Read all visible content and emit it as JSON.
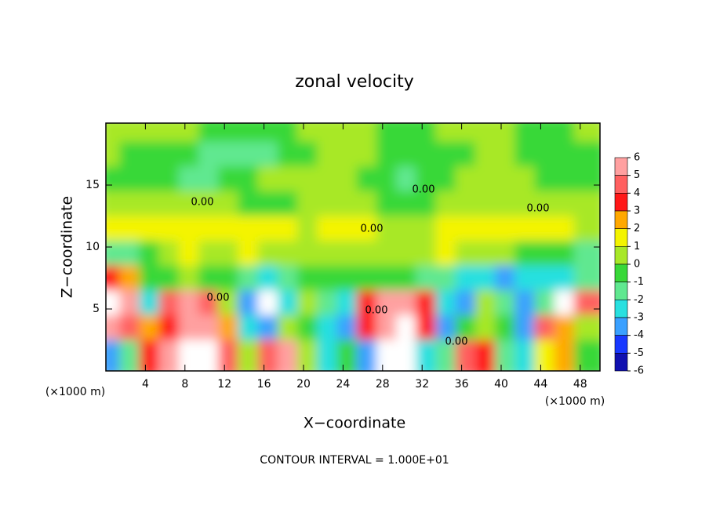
{
  "chart_data": {
    "type": "heatmap",
    "title": "zonal velocity",
    "x_label": "X−coordinate",
    "y_label": "Z−coordinate",
    "x_unit": "(×1000 m)",
    "y_unit": "(×1000 m)",
    "footer": "CONTOUR INTERVAL = 1.000E+01",
    "contour_labels": [
      "0.00",
      "0.00",
      "0.00",
      "0.00",
      "0.00",
      "0.00",
      "0.00"
    ],
    "xlim": [
      0,
      50
    ],
    "xticks": [
      4,
      8,
      12,
      16,
      20,
      24,
      28,
      32,
      36,
      40,
      44,
      48
    ],
    "ylim": [
      0,
      20
    ],
    "yticks": [
      5,
      10,
      15
    ],
    "z": [
      [
        0,
        0,
        0.5,
        0.3,
        0,
        -0.5,
        -1,
        -1,
        -0.8,
        -0.5,
        0,
        0.3,
        0.2,
        0,
        -0.5,
        -0.5,
        -0.3,
        0,
        0.2,
        0.3,
        0,
        -0.3,
        -0.5,
        -0.3,
        0
      ],
      [
        0,
        -0.3,
        -0.5,
        -0.8,
        -1,
        -1.3,
        -1.5,
        -1.6,
        -1.3,
        -1,
        -0.5,
        0,
        0.5,
        0.3,
        -0.5,
        -1,
        -1,
        -0.8,
        -0.5,
        0,
        0.3,
        -0.2,
        -0.5,
        -0.5,
        -0.3
      ],
      [
        -0.5,
        -0.8,
        -1,
        -1,
        -1.2,
        -1.3,
        -1,
        -0.5,
        0,
        0.3,
        0.3,
        0.2,
        0,
        -0.5,
        -1,
        -1.2,
        -1,
        -0.5,
        0,
        0.3,
        0.2,
        0,
        -0.3,
        -0.5,
        -0.3
      ],
      [
        0.3,
        0.3,
        0.5,
        0.5,
        0.3,
        0.2,
        0,
        -0.3,
        -0.5,
        -0.3,
        0,
        0.3,
        0.5,
        0.3,
        -0.3,
        -0.3,
        -0.2,
        0.2,
        0.5,
        0.8,
        0.7,
        0.5,
        0.5,
        0.3,
        0.3
      ],
      [
        1.5,
        1.5,
        1.8,
        1.5,
        1.2,
        1,
        1.2,
        1.5,
        1.3,
        1,
        0.8,
        1,
        1.2,
        1,
        0.5,
        0.5,
        0.8,
        1,
        1.2,
        1.5,
        1.3,
        1,
        1.2,
        1,
        0.8
      ],
      [
        -1.5,
        -1.2,
        -0.5,
        0.5,
        1,
        0.5,
        0.8,
        1,
        0.5,
        0,
        0.3,
        0.5,
        0.5,
        0.3,
        0,
        0.2,
        0.5,
        1,
        0.8,
        0.5,
        0,
        -0.5,
        -0.5,
        -1,
        -1.5
      ],
      [
        3,
        2,
        -0.5,
        -1,
        0,
        -0.5,
        -1,
        -2,
        -2.5,
        -1.5,
        -0.5,
        -1,
        -0.5,
        -1,
        -0.5,
        -0.5,
        -1.5,
        -2,
        -2.5,
        -3,
        -3.5,
        -3,
        -2.5,
        -3,
        -2
      ],
      [
        7,
        5,
        -3,
        4,
        5,
        4.5,
        0,
        -4,
        7,
        -3,
        0,
        -2,
        -3,
        3,
        5,
        5,
        3,
        -3,
        -4,
        0,
        -2,
        -4,
        -2,
        7,
        4
      ],
      [
        5,
        4,
        2,
        3,
        6,
        5,
        2,
        -3,
        -4,
        0,
        -1,
        -3,
        -4,
        3,
        6,
        7,
        3,
        -4,
        -1,
        0,
        -1,
        -4,
        4,
        2,
        0
      ],
      [
        -4,
        -2,
        3,
        5,
        7,
        7,
        4,
        0,
        4,
        5,
        0,
        -3,
        -1,
        -4,
        7,
        7,
        -3,
        -2,
        4,
        3,
        -2,
        -3,
        1,
        2,
        -1
      ]
    ],
    "colorbar_ticks": [
      6,
      5,
      4,
      3,
      2,
      1,
      0,
      -1,
      -2,
      -3,
      -4,
      -5,
      -6
    ],
    "colors": [
      "#ffa0a0",
      "#ff6060",
      "#ff1818",
      "#ffa800",
      "#f4f400",
      "#a8e828",
      "#38d838",
      "#60e890",
      "#28e0e0",
      "#3aa0ff",
      "#1838ff",
      "#1010b0"
    ],
    "low_color": "#7a1fa0",
    "over_color": "#ffffff"
  }
}
